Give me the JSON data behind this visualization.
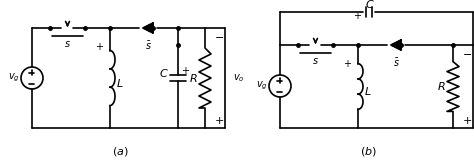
{
  "background": "#ffffff",
  "line_color": "#000000",
  "lw": 1.2,
  "fig_width": 4.74,
  "fig_height": 1.61,
  "dpi": 100,
  "label_fontsize": 7,
  "component_fontsize": 7
}
